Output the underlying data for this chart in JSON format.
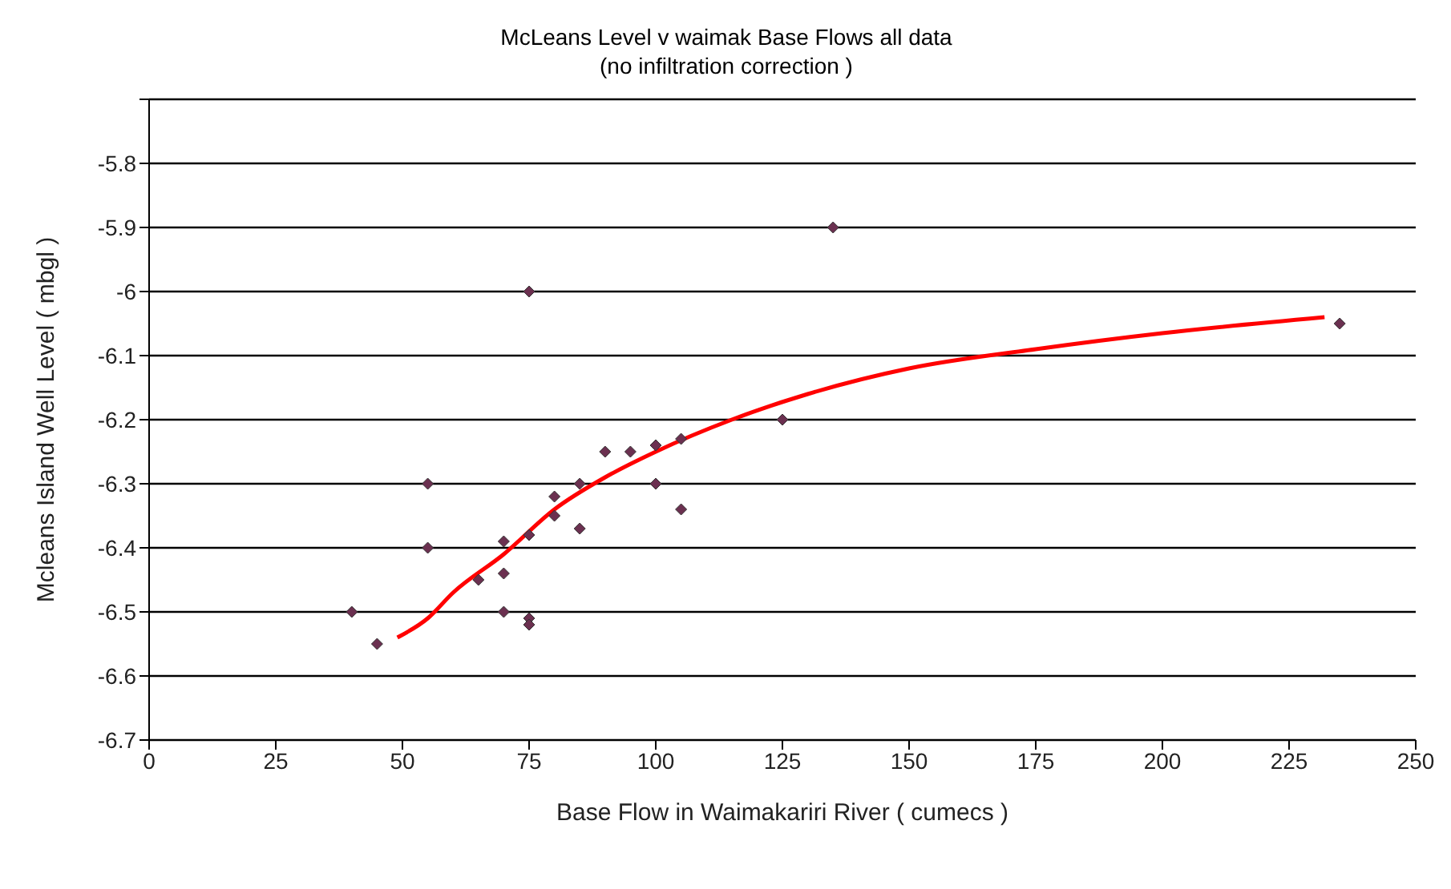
{
  "chart_data": {
    "type": "scatter",
    "title": "McLeans Level v waimak Base Flows all data",
    "subtitle": "(no infiltration correction )",
    "xlabel": "Base Flow in Waimakariri River ( cumecs )",
    "ylabel": "Mcleans Island Well Level ( mbgl )",
    "xlim": [
      0,
      250
    ],
    "xticks": [
      0,
      25,
      50,
      75,
      100,
      125,
      150,
      175,
      200,
      225,
      250
    ],
    "ylim": [
      -6.7,
      -5.7
    ],
    "yticks": [
      -6.7,
      -6.6,
      -6.5,
      -6.4,
      -6.3,
      -6.2,
      -6.1,
      -6,
      -5.9,
      -5.8,
      {
        "value": -5.7,
        "label": null
      }
    ],
    "grid": "y",
    "series": [
      {
        "color": "#6b3050",
        "marker": "diamond",
        "x": [
          40,
          45,
          55,
          55,
          65,
          70,
          70,
          70,
          75,
          75,
          75,
          75,
          80,
          80,
          85,
          85,
          90,
          95,
          100,
          100,
          105,
          105,
          125,
          135,
          235
        ],
        "values": [
          -6.5,
          -6.55,
          -6.3,
          -6.4,
          -6.45,
          -6.39,
          -6.44,
          -6.5,
          -6.51,
          -6.52,
          -6.38,
          -6.0,
          -6.35,
          -6.32,
          -6.3,
          -6.37,
          -6.25,
          -6.25,
          -6.24,
          -6.3,
          -6.23,
          -6.34,
          -6.2,
          -5.9,
          -6.05
        ]
      },
      {
        "type": "line",
        "color": "#ff0000",
        "marker": "none",
        "x": [
          49,
          55,
          60,
          70,
          80,
          90,
          100,
          115,
          130,
          150,
          175,
          200,
          232
        ],
        "values": [
          -6.54,
          -6.51,
          -6.47,
          -6.41,
          -6.34,
          -6.29,
          -6.25,
          -6.2,
          -6.16,
          -6.12,
          -6.09,
          -6.065,
          -6.04
        ]
      }
    ]
  }
}
